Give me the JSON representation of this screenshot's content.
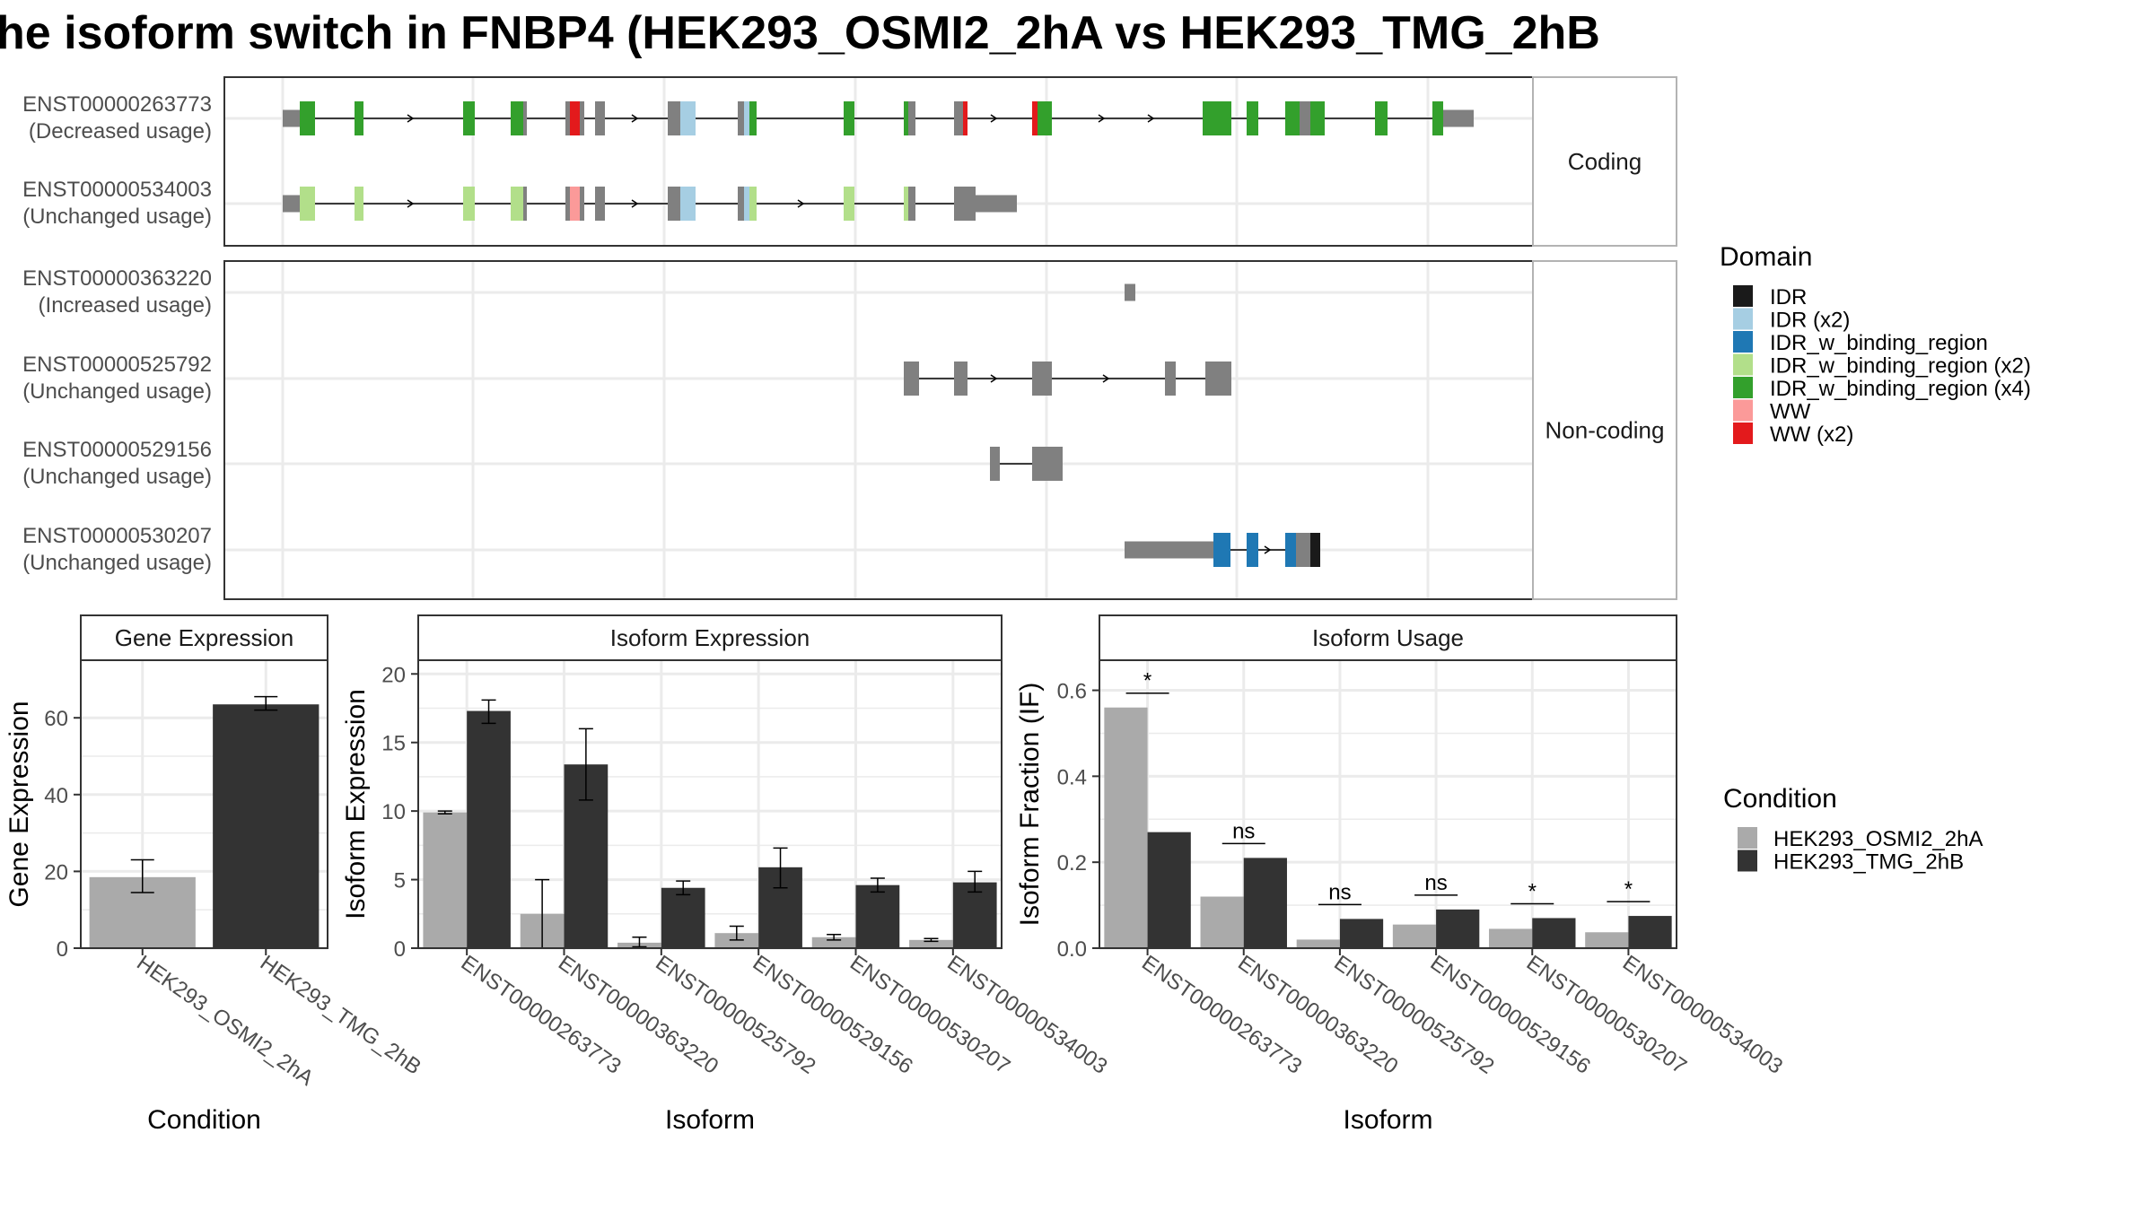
{
  "title": "he isoform switch in FNBP4 (HEK293_OSMI2_2hA vs HEK293_TMG_2hB",
  "colors": {
    "utr": "#808080",
    "IDR": "#1a1a1a",
    "IDR (x2)": "#a6cee3",
    "IDR_w_binding_region": "#1f78b4",
    "IDR_w_binding_region (x2)": "#b2df8a",
    "IDR_w_binding_region (x4)": "#33a02c",
    "WW": "#fb9a99",
    "WW (x2)": "#e31a1c",
    "cond1": "#aaaaaa",
    "cond2": "#333333",
    "panel_border": "#333333",
    "grid": "#ebebeb"
  },
  "structure": {
    "coding_strip": "Coding",
    "noncoding_strip": "Non-coding",
    "transcripts": [
      {
        "id": "ENST00000263773",
        "usage": "(Decreased usage)",
        "group": "coding"
      },
      {
        "id": "ENST00000534003",
        "usage": "(Unchanged usage)",
        "group": "coding"
      },
      {
        "id": "ENST00000363220",
        "usage": "(Increased usage)",
        "group": "noncoding"
      },
      {
        "id": "ENST00000525792",
        "usage": "(Unchanged usage)",
        "group": "noncoding"
      },
      {
        "id": "ENST00000529156",
        "usage": "(Unchanged usage)",
        "group": "noncoding"
      },
      {
        "id": "ENST00000530207",
        "usage": "(Unchanged usage)",
        "group": "noncoding"
      }
    ]
  },
  "domain_legend": {
    "title": "Domain",
    "items": [
      "IDR",
      "IDR (x2)",
      "IDR_w_binding_region",
      "IDR_w_binding_region (x2)",
      "IDR_w_binding_region (x4)",
      "WW",
      "WW (x2)"
    ]
  },
  "condition_legend": {
    "title": "Condition",
    "items": [
      "HEK293_OSMI2_2hA",
      "HEK293_TMG_2hB"
    ]
  },
  "chart_data": [
    {
      "type": "bar",
      "title": "Gene Expression",
      "xlabel": "Condition",
      "ylabel": "Gene Expression",
      "ylim": [
        0,
        75
      ],
      "yticks": [
        0,
        20,
        40,
        60
      ],
      "categories": [
        "HEK293_OSMI2_2hA",
        "HEK293_TMG_2hB"
      ],
      "values": [
        18.5,
        63.5
      ],
      "errors": [
        [
          14.5,
          23
        ],
        [
          62,
          65.5
        ]
      ]
    },
    {
      "type": "bar",
      "title": "Isoform Expression",
      "xlabel": "Isoform",
      "ylabel": "Isoform Expression",
      "ylim": [
        0,
        21
      ],
      "yticks": [
        0,
        5,
        10,
        15,
        20
      ],
      "categories": [
        "ENST00000263773",
        "ENST00000363220",
        "ENST00000525792",
        "ENST00000529156",
        "ENST00000530207",
        "ENST00000534003"
      ],
      "series": [
        {
          "name": "HEK293_OSMI2_2hA",
          "values": [
            9.9,
            2.5,
            0.4,
            1.1,
            0.8,
            0.6
          ],
          "errors": [
            [
              9.8,
              10.0
            ],
            [
              0.0,
              5.0
            ],
            [
              0.1,
              0.8
            ],
            [
              0.6,
              1.6
            ],
            [
              0.6,
              1.0
            ],
            [
              0.5,
              0.7
            ]
          ]
        },
        {
          "name": "HEK293_TMG_2hB",
          "values": [
            17.3,
            13.4,
            4.4,
            5.9,
            4.6,
            4.8
          ],
          "errors": [
            [
              16.4,
              18.1
            ],
            [
              10.8,
              16.0
            ],
            [
              3.9,
              4.9
            ],
            [
              4.4,
              7.3
            ],
            [
              4.1,
              5.1
            ],
            [
              4.1,
              5.6
            ]
          ]
        }
      ]
    },
    {
      "type": "bar",
      "title": "Isoform Usage",
      "xlabel": "Isoform",
      "ylabel": "Isoform Fraction (IF)",
      "ylim": [
        0,
        0.67
      ],
      "yticks": [
        0.0,
        0.2,
        0.4,
        0.6
      ],
      "ytick_labels": [
        "0.0",
        "0.2",
        "0.4",
        "0.6"
      ],
      "categories": [
        "ENST00000263773",
        "ENST00000363220",
        "ENST00000525792",
        "ENST00000529156",
        "ENST00000530207",
        "ENST00000534003"
      ],
      "series": [
        {
          "name": "HEK293_OSMI2_2hA",
          "values": [
            0.56,
            0.12,
            0.02,
            0.055,
            0.045,
            0.037
          ]
        },
        {
          "name": "HEK293_TMG_2hB",
          "values": [
            0.27,
            0.21,
            0.068,
            0.09,
            0.07,
            0.075
          ]
        }
      ],
      "significance": [
        "*",
        "ns",
        "ns",
        "ns",
        "*",
        "*"
      ]
    }
  ]
}
